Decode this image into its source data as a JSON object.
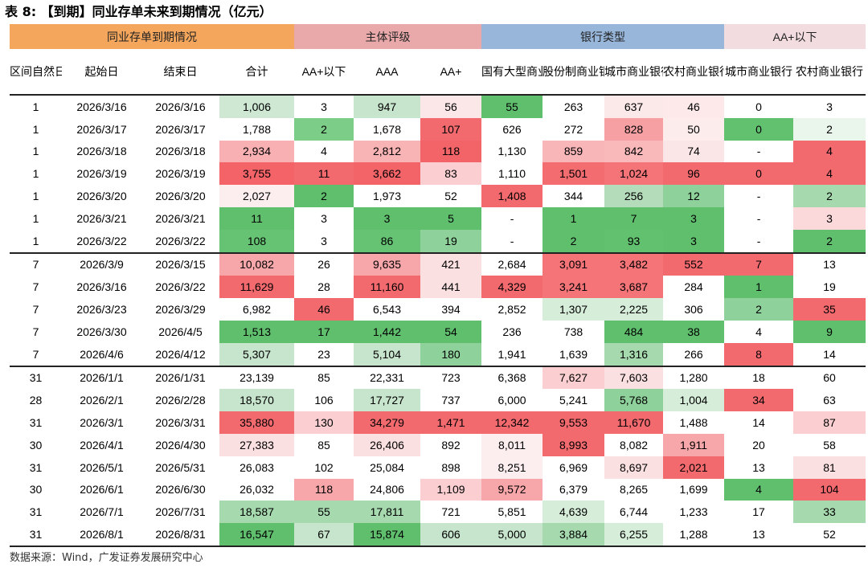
{
  "title": "表 8: 【到期】同业存单未来到期情况（亿元）",
  "group_headers": [
    "同业存单到期情况",
    "主体评级",
    "银行类型",
    "AA+以下"
  ],
  "columns": [
    "区间自然日",
    "起始日",
    "结束日",
    "合计",
    "AA+以下",
    "AAA",
    "AA+",
    "国有大型商业银行",
    "股份制商业银行",
    "城市商业银行",
    "农村商业银行",
    "城市商业银行",
    "农村商业银行"
  ],
  "rows": [
    [
      "1",
      "2026/3/16",
      "2026/3/16",
      "1,006",
      "3",
      "947",
      "56",
      "55",
      "263",
      "637",
      "46",
      "0",
      "3"
    ],
    [
      "1",
      "2026/3/17",
      "2026/3/17",
      "1,788",
      "2",
      "1,678",
      "107",
      "626",
      "272",
      "828",
      "50",
      "0",
      "2"
    ],
    [
      "1",
      "2026/3/18",
      "2026/3/18",
      "2,934",
      "4",
      "2,812",
      "118",
      "1,130",
      "859",
      "842",
      "74",
      "-",
      "4"
    ],
    [
      "1",
      "2026/3/19",
      "2026/3/19",
      "3,755",
      "11",
      "3,662",
      "83",
      "1,110",
      "1,501",
      "1,024",
      "96",
      "0",
      "4"
    ],
    [
      "1",
      "2026/3/20",
      "2026/3/20",
      "2,027",
      "2",
      "1,973",
      "52",
      "1,408",
      "344",
      "256",
      "12",
      "-",
      "2"
    ],
    [
      "1",
      "2026/3/21",
      "2026/3/21",
      "11",
      "3",
      "3",
      "5",
      "-",
      "1",
      "7",
      "3",
      "-",
      "3"
    ],
    [
      "1",
      "2026/3/22",
      "2026/3/22",
      "108",
      "3",
      "86",
      "19",
      "-",
      "2",
      "93",
      "3",
      "-",
      "2"
    ],
    [
      "7",
      "2026/3/9",
      "2026/3/15",
      "10,082",
      "26",
      "9,635",
      "421",
      "2,684",
      "3,091",
      "3,482",
      "552",
      "7",
      "13"
    ],
    [
      "7",
      "2026/3/16",
      "2026/3/22",
      "11,629",
      "28",
      "11,160",
      "441",
      "4,329",
      "3,241",
      "3,687",
      "284",
      "1",
      "19"
    ],
    [
      "7",
      "2026/3/23",
      "2026/3/29",
      "6,982",
      "46",
      "6,543",
      "394",
      "2,852",
      "1,307",
      "2,225",
      "306",
      "2",
      "35"
    ],
    [
      "7",
      "2026/3/30",
      "2026/4/5",
      "1,513",
      "17",
      "1,442",
      "54",
      "236",
      "738",
      "484",
      "38",
      "4",
      "9"
    ],
    [
      "7",
      "2026/4/6",
      "2026/4/12",
      "5,307",
      "23",
      "5,104",
      "180",
      "1,941",
      "1,639",
      "1,316",
      "266",
      "8",
      "14"
    ],
    [
      "31",
      "2026/1/1",
      "2026/1/31",
      "23,139",
      "85",
      "22,331",
      "723",
      "6,368",
      "7,627",
      "7,603",
      "1,280",
      "18",
      "60"
    ],
    [
      "28",
      "2026/2/1",
      "2026/2/28",
      "18,570",
      "106",
      "17,727",
      "737",
      "6,000",
      "5,241",
      "5,768",
      "1,004",
      "34",
      "63"
    ],
    [
      "31",
      "2026/3/1",
      "2026/3/31",
      "35,880",
      "130",
      "34,279",
      "1,471",
      "12,342",
      "9,553",
      "11,670",
      "1,488",
      "14",
      "87"
    ],
    [
      "30",
      "2026/4/1",
      "2026/4/30",
      "27,383",
      "85",
      "26,406",
      "892",
      "8,011",
      "8,993",
      "8,082",
      "1,911",
      "20",
      "58"
    ],
    [
      "31",
      "2026/5/1",
      "2026/5/31",
      "26,083",
      "102",
      "25,084",
      "898",
      "8,251",
      "6,969",
      "8,697",
      "2,021",
      "13",
      "81"
    ],
    [
      "30",
      "2026/6/1",
      "2026/6/30",
      "26,032",
      "118",
      "24,806",
      "1,109",
      "9,572",
      "6,379",
      "8,265",
      "1,699",
      "4",
      "104"
    ],
    [
      "31",
      "2026/7/1",
      "2026/7/31",
      "18,587",
      "55",
      "17,811",
      "721",
      "5,851",
      "4,639",
      "6,744",
      "1,233",
      "17",
      "33"
    ],
    [
      "31",
      "2026/8/1",
      "2026/8/31",
      "16,547",
      "67",
      "15,874",
      "606",
      "5,000",
      "3,884",
      "6,255",
      "1,288",
      "13",
      "52"
    ]
  ],
  "cell_colors": [
    [
      "",
      "",
      "",
      "#cfe8d4",
      "#ffffff",
      "#c7e4cc",
      "#fbe7e8",
      "#5fbf6d",
      "#ffffff",
      "#fbe8e9",
      "#fde9ea",
      "#ffffff",
      "#ffffff"
    ],
    [
      "",
      "",
      "",
      "#ffffff",
      "#7ccd88",
      "#ffffff",
      "#f36a6e",
      "#ffffff",
      "#ffffff",
      "#f6a0a3",
      "#fcecec",
      "#62c16f",
      "#eaf5ec"
    ],
    [
      "",
      "",
      "",
      "#f8b0b3",
      "#ffffff",
      "#f8b3b5",
      "#f36468",
      "#ffffff",
      "#f8b6b8",
      "#f9b8ba",
      "#fbe6e7",
      "#ffffff",
      "#f36a6e"
    ],
    [
      "",
      "",
      "",
      "#f36368",
      "#f36a6e",
      "#f36468",
      "#fbcfd1",
      "#ffffff",
      "#f36c70",
      "#f47478",
      "#f26a6e",
      "#f26a6e",
      "#f36a6e"
    ],
    [
      "",
      "",
      "",
      "#fceeef",
      "#5fbf6d",
      "#ffffff",
      "#ffffff",
      "#f36a6e",
      "#ffffff",
      "#b4dbba",
      "#8fd19a",
      "#ffffff",
      "#a6d9ae"
    ],
    [
      "",
      "",
      "",
      "#5fbf6d",
      "#ffffff",
      "#5fbf6d",
      "#5fbf6d",
      "#ffffff",
      "#5fbf6d",
      "#5fbf6d",
      "#5fbf6d",
      "#ffffff",
      "#fbd9db"
    ],
    [
      "",
      "",
      "",
      "#66c374",
      "#ffffff",
      "#66c374",
      "#8fd19a",
      "#ffffff",
      "#5fbf6d",
      "#62c16f",
      "#5fbf6d",
      "#ffffff",
      "#5fbf6d"
    ],
    [
      "",
      "",
      "",
      "#f7a7a9",
      "#ffffff",
      "#f7a7a9",
      "#fbe0e1",
      "#ffffff",
      "#f47478",
      "#f47478",
      "#f36a6e",
      "#f36a6e",
      "#ffffff"
    ],
    [
      "",
      "",
      "",
      "#f36a6e",
      "#ffffff",
      "#f36a6e",
      "#fbe0e1",
      "#f36a6e",
      "#f47478",
      "#f47478",
      "#ffffff",
      "#5fbf6d",
      "#ffffff"
    ],
    [
      "",
      "",
      "",
      "#ffffff",
      "#f36a6e",
      "#ffffff",
      "#ffffff",
      "#ffffff",
      "#d6eed9",
      "#d6eed9",
      "#ffffff",
      "#8fd19a",
      "#f36a6e"
    ],
    [
      "",
      "",
      "",
      "#5fbf6d",
      "#5fbf6d",
      "#5fbf6d",
      "#5fbf6d",
      "#ffffff",
      "#ffffff",
      "#5fbf6d",
      "#5fbf6d",
      "#ffffff",
      "#5fbf6d"
    ],
    [
      "",
      "",
      "",
      "#c7e4cc",
      "#ffffff",
      "#c7e4cc",
      "#8fd19a",
      "#ffffff",
      "#ffffff",
      "#a6d9ae",
      "#ffffff",
      "#f36a6e",
      "#ffffff"
    ],
    [
      "",
      "",
      "",
      "#ffffff",
      "#ffffff",
      "#ffffff",
      "#ffffff",
      "#ffffff",
      "#fbcfd1",
      "#fbe0e1",
      "#ffffff",
      "#ffffff",
      "#ffffff"
    ],
    [
      "",
      "",
      "",
      "#c7e4cc",
      "#ffffff",
      "#c7e4cc",
      "#ffffff",
      "#ffffff",
      "#ffffff",
      "#8fd19a",
      "#d6eed9",
      "#f36a6e",
      "#ffffff"
    ],
    [
      "",
      "",
      "",
      "#f36a6e",
      "#fbcfd1",
      "#f36a6e",
      "#f36a6e",
      "#f36a6e",
      "#f36a6e",
      "#f36a6e",
      "#ffffff",
      "#ffffff",
      "#fbcfd1"
    ],
    [
      "",
      "",
      "",
      "#fbe0e1",
      "#ffffff",
      "#fbe0e1",
      "#ffffff",
      "#fceeef",
      "#f36a6e",
      "#ffffff",
      "#f7a7a9",
      "#ffffff",
      "#ffffff"
    ],
    [
      "",
      "",
      "",
      "#ffffff",
      "#ffffff",
      "#ffffff",
      "#ffffff",
      "#fceeef",
      "#ffffff",
      "#fbe0e1",
      "#f36a6e",
      "#ffffff",
      "#fbe0e1"
    ],
    [
      "",
      "",
      "",
      "#ffffff",
      "#f7a7a9",
      "#ffffff",
      "#fbcfd1",
      "#f7a7a9",
      "#ffffff",
      "#ffffff",
      "#ffffff",
      "#5fbf6d",
      "#f36a6e"
    ],
    [
      "",
      "",
      "",
      "#a6d9ae",
      "#a6d9ae",
      "#a6d9ae",
      "#ffffff",
      "#ffffff",
      "#d6eed9",
      "#ffffff",
      "#ffffff",
      "#ffffff",
      "#a6d9ae"
    ],
    [
      "",
      "",
      "",
      "#5fbf6d",
      "#c7e4cc",
      "#5fbf6d",
      "#c7e4cc",
      "#c7e4cc",
      "#a6d9ae",
      "#d6eed9",
      "#ffffff",
      "#ffffff",
      "#ffffff"
    ]
  ],
  "source": "数据来源：Wind，广发证券发展研究中心"
}
